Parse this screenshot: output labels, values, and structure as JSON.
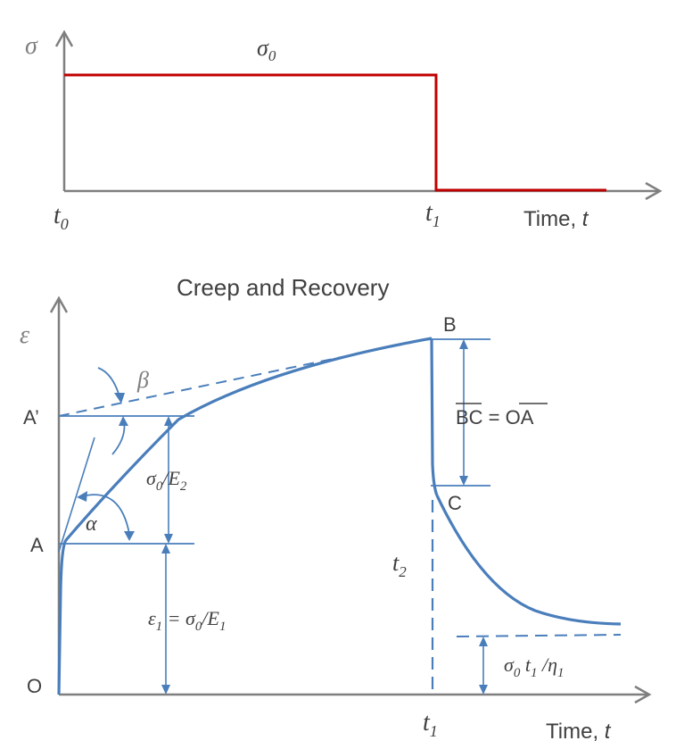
{
  "stress_plot": {
    "y_axis_label": "σ",
    "level_label": "σ",
    "level_sub": "0",
    "t0_main": "t",
    "t0_sub": "0",
    "t1_main": "t",
    "t1_sub": "1",
    "time_label": "Time, ",
    "time_var": "t",
    "line_color": "#c00000"
  },
  "strain_plot": {
    "title": "Creep and Recovery",
    "y_axis_label": "ε",
    "point_A_prime": "A’",
    "point_A": "A",
    "point_O": "O",
    "point_B": "B",
    "point_C": "C",
    "beta": "β",
    "alpha": "α",
    "delayed_label": {
      "a": "σ",
      "a_sub": "0",
      "b": "/E",
      "b_sub": "2"
    },
    "instant_label": {
      "a": "ε",
      "a_sub": "1",
      "b": " = σ",
      "b_sub": "0",
      "c": "/E",
      "c_sub": "1"
    },
    "recovery_label": {
      "left": "BC",
      "eq": " = ",
      "right": "OA"
    },
    "t2_main": "t",
    "t2_sub": "2",
    "permanent_label": {
      "a": "σ",
      "a_sub": "0",
      "b": " t",
      "b_sub": "1",
      "c": " /η",
      "c_sub": "1"
    },
    "t1_main": "t",
    "t1_sub": "1",
    "time_label": "Time, ",
    "time_var": "t",
    "curve_color": "#4a7ebb"
  }
}
